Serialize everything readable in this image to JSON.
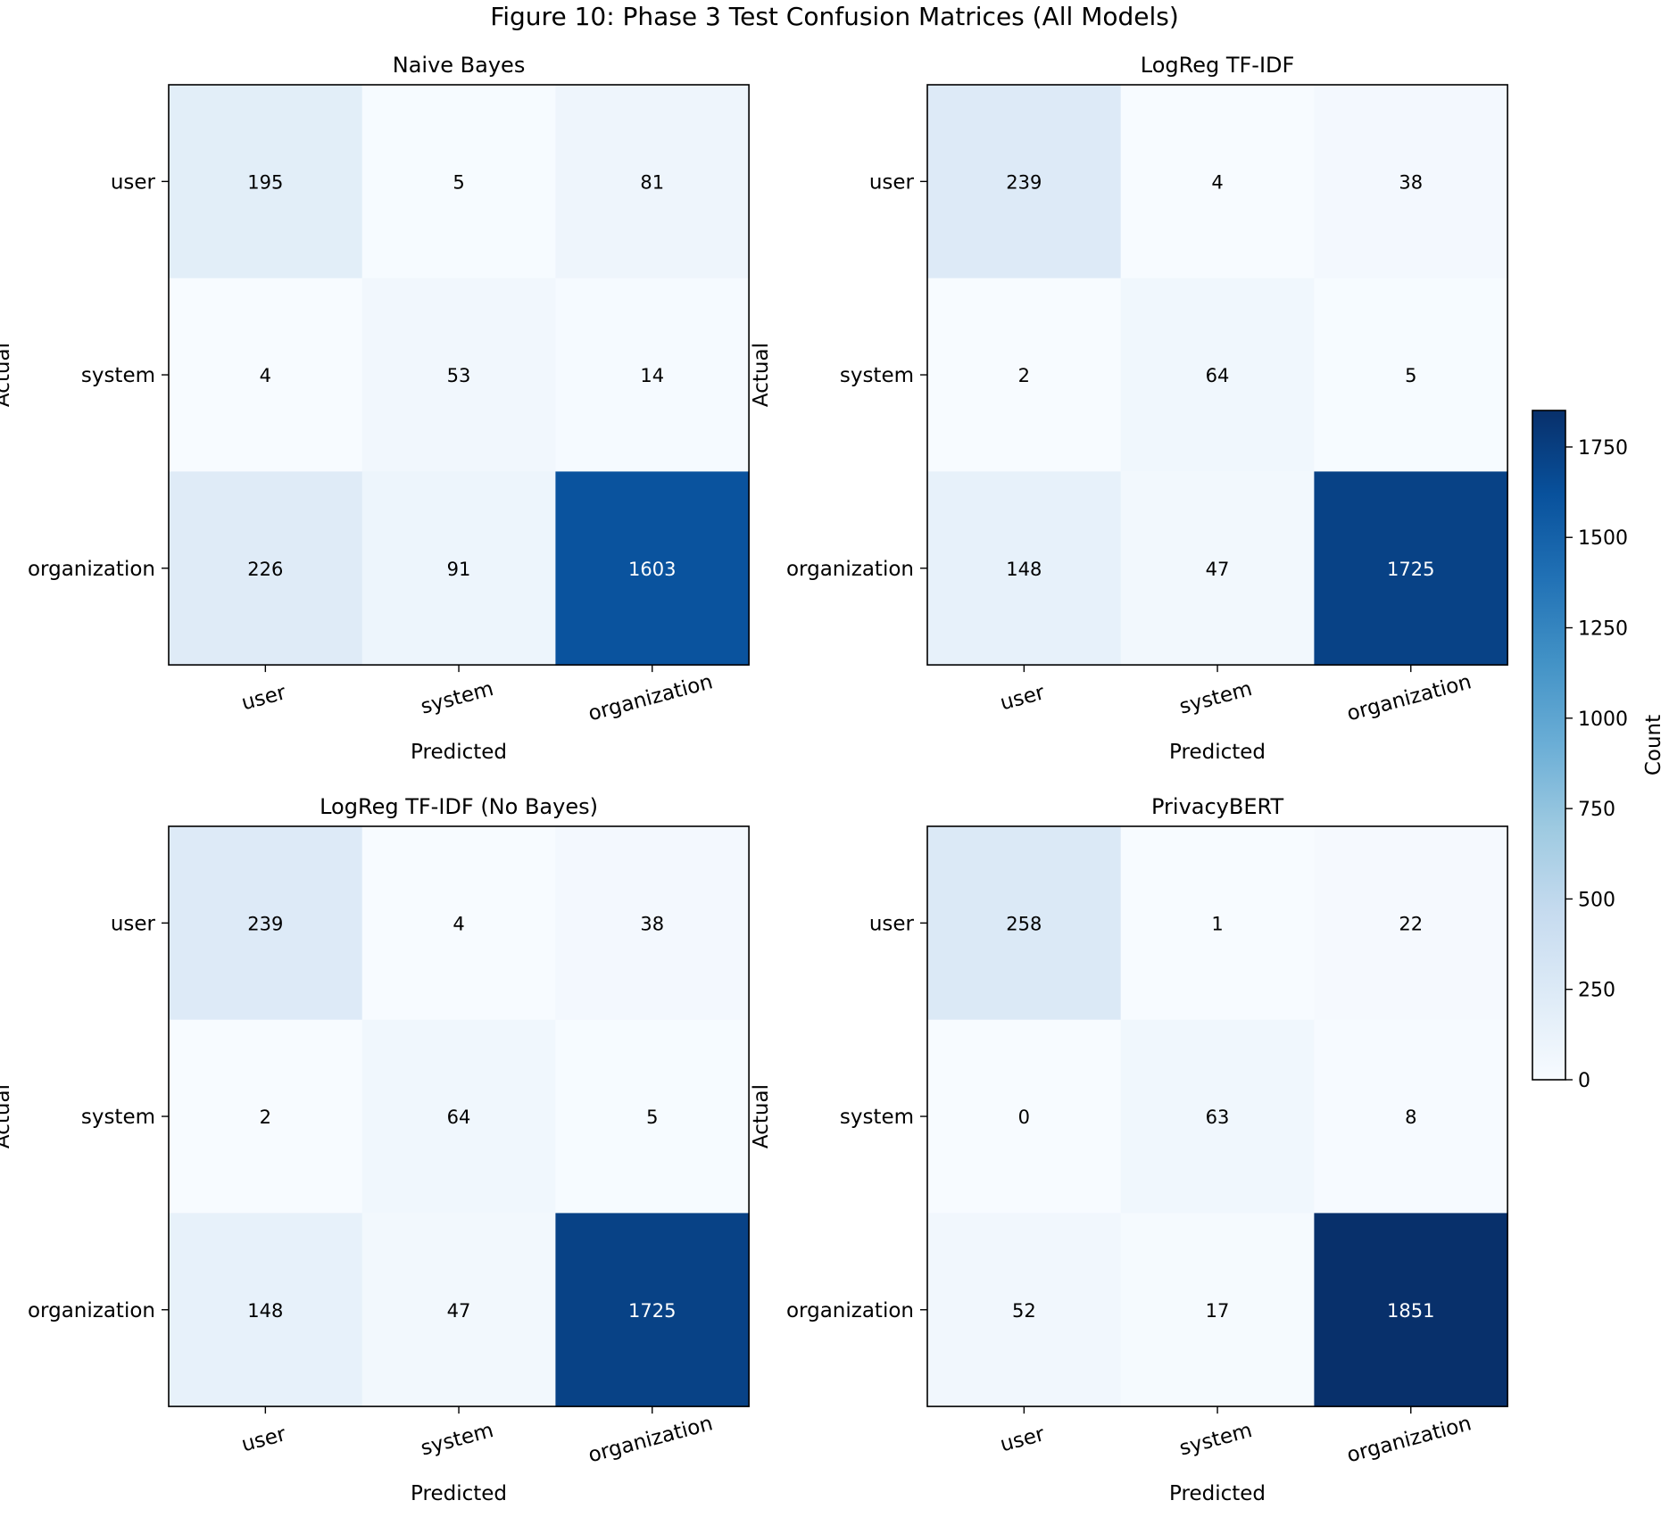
{
  "chart_data": {
    "type": "heatmap",
    "title": "Figure 10: Phase 3 Test Confusion Matrices (All Models)",
    "xlabel": "Predicted",
    "ylabel": "Actual",
    "row_labels": [
      "user",
      "system",
      "organization"
    ],
    "col_labels": [
      "user",
      "system",
      "organization"
    ],
    "colormap": "Blues",
    "colormap_stops": [
      "#f7fbff",
      "#deebf7",
      "#c6dbef",
      "#9ecae1",
      "#6baed6",
      "#4292c6",
      "#2171b5",
      "#08519c",
      "#08306b"
    ],
    "vmin": 0,
    "vmax": 1851,
    "colorbar": {
      "label": "Count",
      "ticks": [
        0,
        250,
        500,
        750,
        1000,
        1250,
        1500,
        1750
      ],
      "placement": "right"
    },
    "matrices": [
      {
        "name": "Naive Bayes",
        "values": [
          [
            195,
            5,
            81
          ],
          [
            4,
            53,
            14
          ],
          [
            226,
            91,
            1603
          ]
        ]
      },
      {
        "name": "LogReg TF-IDF",
        "values": [
          [
            239,
            4,
            38
          ],
          [
            2,
            64,
            5
          ],
          [
            148,
            47,
            1725
          ]
        ]
      },
      {
        "name": "LogReg TF-IDF (No Bayes)",
        "values": [
          [
            239,
            4,
            38
          ],
          [
            2,
            64,
            5
          ],
          [
            148,
            47,
            1725
          ]
        ]
      },
      {
        "name": "PrivacyBERT",
        "values": [
          [
            258,
            1,
            22
          ],
          [
            0,
            63,
            8
          ],
          [
            52,
            17,
            1851
          ]
        ]
      }
    ]
  }
}
